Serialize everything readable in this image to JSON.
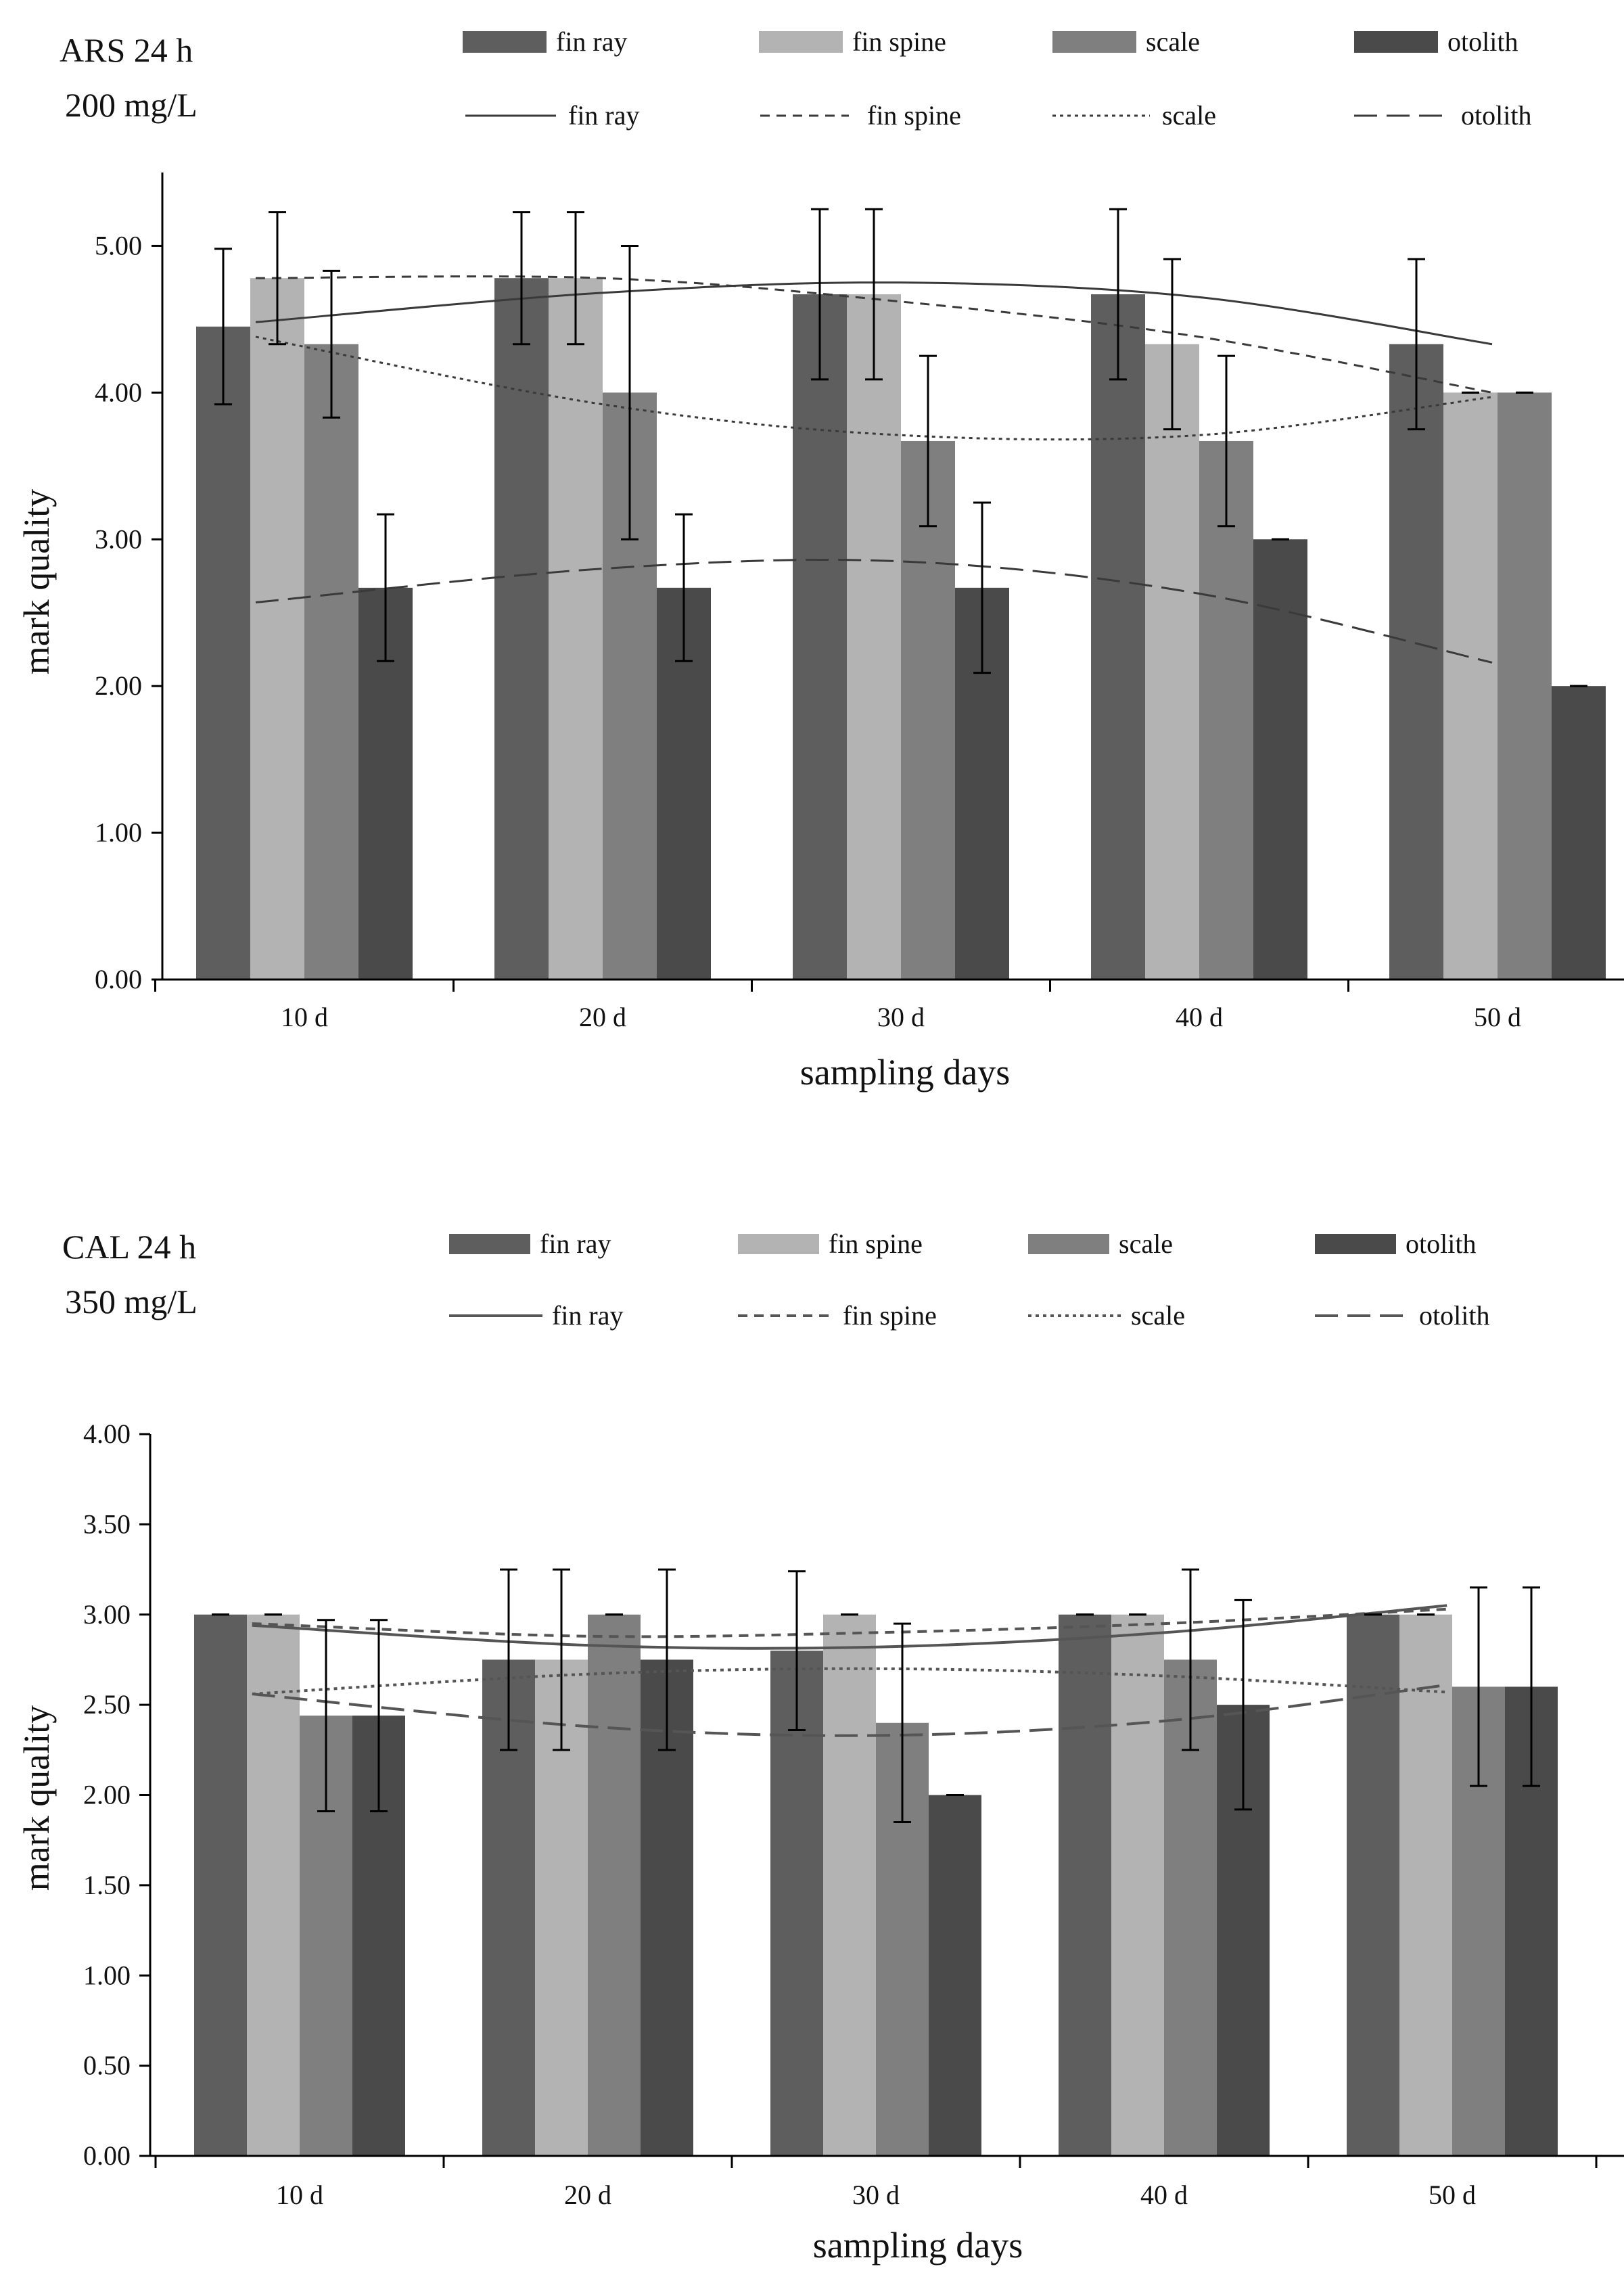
{
  "colors": {
    "fin_ray": "#5e5e5e",
    "fin_spine": "#b3b3b3",
    "scale": "#7f7f7f",
    "otolith": "#4a4a4a",
    "axis": "#000000",
    "fit_line": "#3a3a3a",
    "fit_line_light": "#555555"
  },
  "chart_data": [
    {
      "type": "bar",
      "title_line1": "ARS 24 h",
      "title_line2": "200 mg/L",
      "xlabel": "sampling days",
      "ylabel": "mark quality",
      "categories": [
        "10 d",
        "20 d",
        "30 d",
        "40 d",
        "50 d"
      ],
      "ylim": [
        0,
        5.5
      ],
      "yticks": [
        0,
        1,
        2,
        3,
        4,
        5
      ],
      "ytick_labels": [
        "0.00",
        "1.00",
        "2.00",
        "3.00",
        "4.00",
        "5.00"
      ],
      "series": [
        {
          "name": "fin ray",
          "values": [
            4.45,
            4.78,
            4.67,
            4.67,
            4.33
          ],
          "errors": [
            0.53,
            0.45,
            0.58,
            0.58,
            0.58
          ]
        },
        {
          "name": "fin spine",
          "values": [
            4.78,
            4.78,
            4.67,
            4.33,
            4.0
          ],
          "errors": [
            0.45,
            0.45,
            0.58,
            0.58,
            0.0
          ]
        },
        {
          "name": "scale",
          "values": [
            4.33,
            4.0,
            3.67,
            3.67,
            4.0
          ],
          "errors": [
            0.5,
            1.0,
            0.58,
            0.58,
            0.0
          ]
        },
        {
          "name": "otolith",
          "values": [
            2.67,
            2.67,
            2.67,
            3.0,
            2.0
          ],
          "errors": [
            0.5,
            0.5,
            0.58,
            0.0,
            0.0
          ]
        }
      ],
      "trendlines": [
        {
          "name": "fin ray",
          "style": "solid",
          "values": [
            4.48,
            4.68,
            4.75,
            4.65,
            4.33
          ]
        },
        {
          "name": "fin spine",
          "style": "dashed",
          "values": [
            4.78,
            4.78,
            4.62,
            4.38,
            4.0
          ]
        },
        {
          "name": "scale",
          "style": "dotted",
          "values": [
            4.38,
            3.92,
            3.71,
            3.71,
            3.97
          ]
        },
        {
          "name": "otolith",
          "style": "longdash",
          "values": [
            2.57,
            2.8,
            2.85,
            2.63,
            2.16
          ]
        }
      ],
      "legend_bars": [
        "fin ray",
        "fin spine",
        "scale",
        "otolith"
      ],
      "legend_lines": [
        "fin ray",
        "fin spine",
        "scale",
        "otolith"
      ]
    },
    {
      "type": "bar",
      "title_line1": "CAL 24 h",
      "title_line2": "350 mg/L",
      "xlabel": "sampling days",
      "ylabel": "mark quality",
      "categories": [
        "10 d",
        "20 d",
        "30 d",
        "40 d",
        "50 d"
      ],
      "ylim": [
        0,
        4.0
      ],
      "yticks": [
        0,
        0.5,
        1.0,
        1.5,
        2.0,
        2.5,
        3.0,
        3.5,
        4.0
      ],
      "ytick_labels": [
        "0.00",
        "0.50",
        "1.00",
        "1.50",
        "2.00",
        "2.50",
        "3.00",
        "3.50",
        "4.00"
      ],
      "series": [
        {
          "name": "fin ray",
          "values": [
            3.0,
            2.75,
            2.8,
            3.0,
            3.0
          ],
          "errors": [
            0.0,
            0.5,
            0.44,
            0.0,
            0.0
          ]
        },
        {
          "name": "fin spine",
          "values": [
            3.0,
            2.75,
            3.0,
            3.0,
            3.0
          ],
          "errors": [
            0.0,
            0.5,
            0.0,
            0.0,
            0.0
          ]
        },
        {
          "name": "scale",
          "values": [
            2.44,
            3.0,
            2.4,
            2.75,
            2.6
          ],
          "errors": [
            0.53,
            0.0,
            0.55,
            0.5,
            0.55
          ]
        },
        {
          "name": "otolith",
          "values": [
            2.44,
            2.75,
            2.0,
            2.5,
            2.6
          ],
          "errors": [
            0.53,
            0.5,
            0.0,
            0.58,
            0.55
          ]
        }
      ],
      "trendlines": [
        {
          "name": "fin ray",
          "style": "solid",
          "values": [
            2.94,
            2.83,
            2.82,
            2.9,
            3.05
          ]
        },
        {
          "name": "fin spine",
          "style": "dashed",
          "values": [
            2.95,
            2.88,
            2.9,
            2.95,
            3.03
          ]
        },
        {
          "name": "scale",
          "style": "dotted",
          "values": [
            2.56,
            2.67,
            2.7,
            2.66,
            2.57
          ]
        },
        {
          "name": "otolith",
          "style": "longdash",
          "values": [
            2.56,
            2.38,
            2.33,
            2.41,
            2.61
          ]
        }
      ],
      "legend_bars": [
        "fin ray",
        "fin spine",
        "scale",
        "otolith"
      ],
      "legend_lines": [
        "fin ray",
        "fin spine",
        "scale",
        "otolith"
      ]
    }
  ]
}
